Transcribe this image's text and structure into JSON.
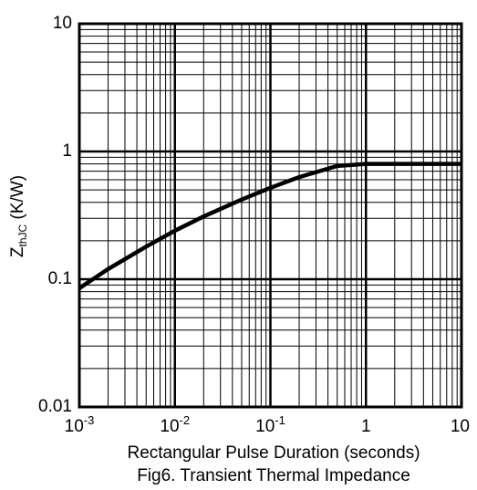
{
  "chart_data": {
    "type": "line",
    "caption": "Fig6. Transient Thermal Impedance",
    "xlabel": "Rectangular Pulse Duration (seconds)",
    "ylabel": {
      "main": "Z",
      "sub": "thJC",
      "unit": " (K/W)"
    },
    "x_scale": "log",
    "y_scale": "log",
    "xlim": [
      0.001,
      10
    ],
    "ylim": [
      0.01,
      10
    ],
    "x_ticks": [
      {
        "base": "10",
        "exp": "-3"
      },
      {
        "base": "10",
        "exp": "-2"
      },
      {
        "base": "10",
        "exp": "-1"
      },
      {
        "base": "1",
        "exp": ""
      },
      {
        "base": "10",
        "exp": ""
      }
    ],
    "y_ticks": [
      "10",
      "1",
      "0.1",
      "0.01"
    ],
    "grid": true,
    "series": [
      {
        "x": [
          0.001,
          0.002,
          0.005,
          0.01,
          0.02,
          0.05,
          0.1,
          0.2,
          0.5,
          1,
          2,
          5,
          10
        ],
        "y": [
          0.085,
          0.12,
          0.18,
          0.24,
          0.31,
          0.42,
          0.52,
          0.63,
          0.77,
          0.8,
          0.8,
          0.8,
          0.8
        ]
      }
    ]
  }
}
